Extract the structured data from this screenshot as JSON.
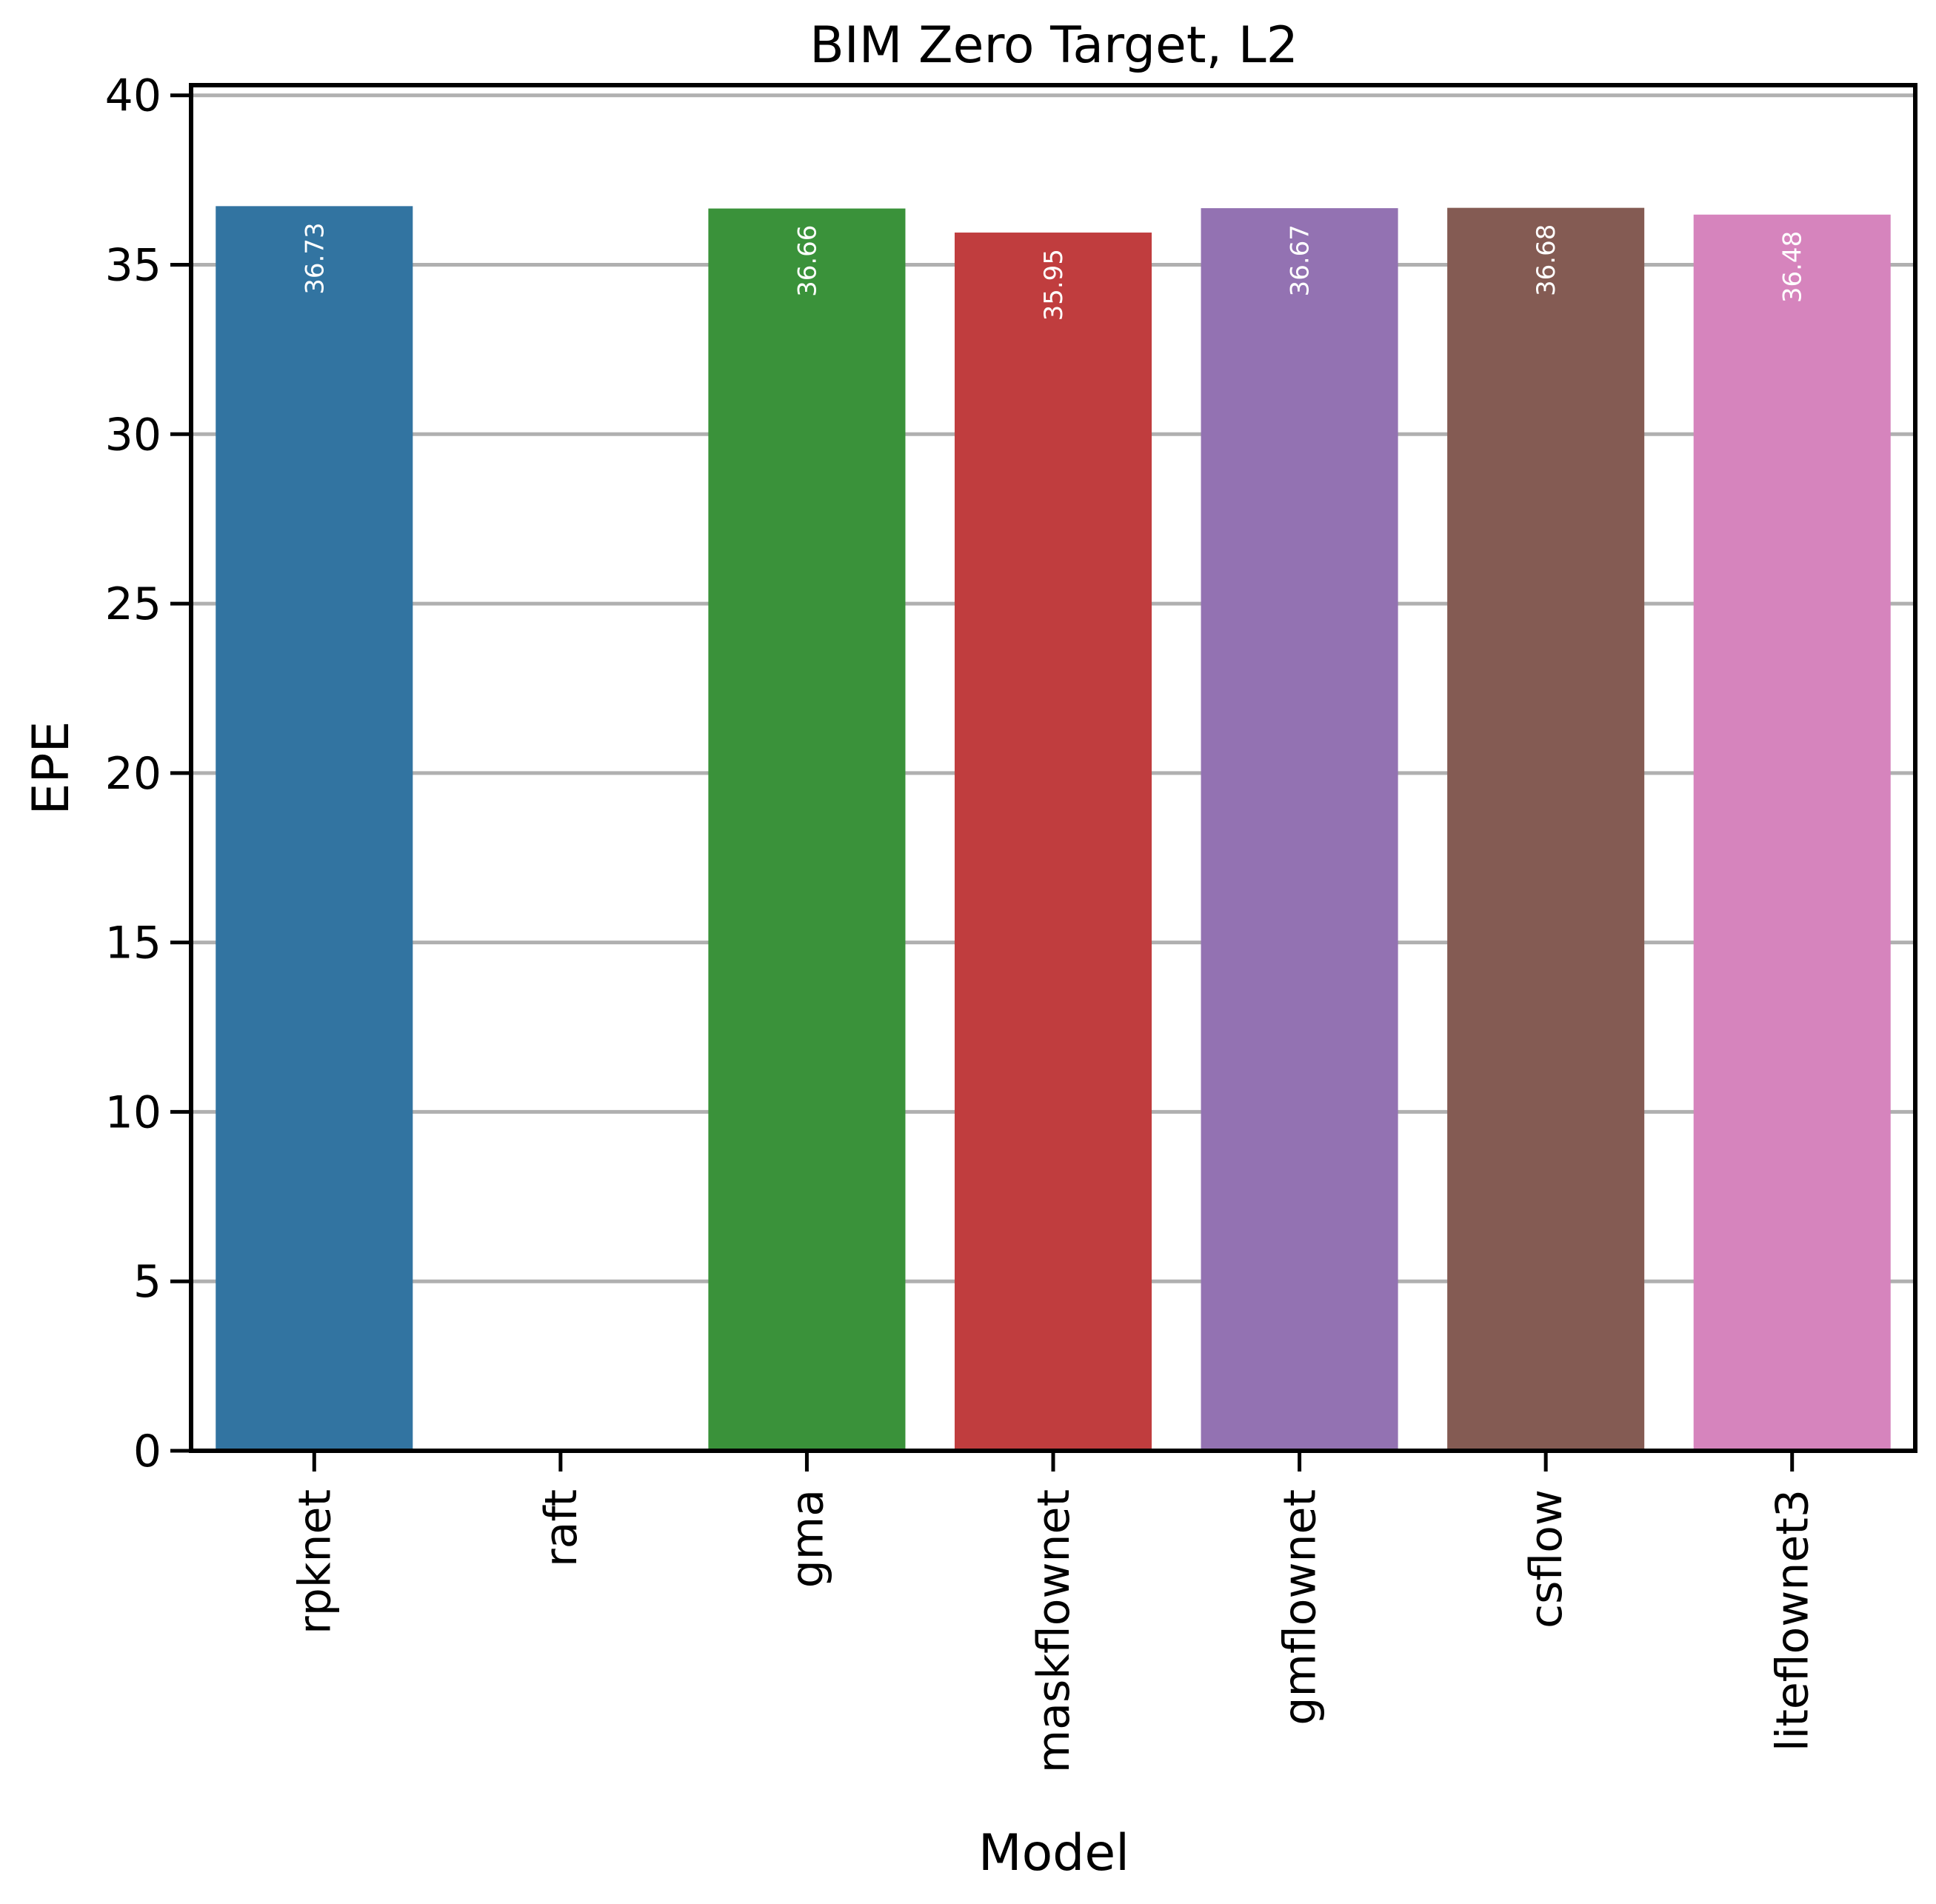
{
  "chart_data": {
    "type": "bar",
    "title": "BIM Zero Target, L2",
    "xlabel": "Model",
    "ylabel": "EPE",
    "categories": [
      "rpknet",
      "raft",
      "gma",
      "maskflownet",
      "gmflownet",
      "csflow",
      "liteflownet3"
    ],
    "values": [
      36.73,
      null,
      36.66,
      35.95,
      36.67,
      36.68,
      36.48
    ],
    "data_labels": [
      "36.73",
      "",
      "36.66",
      "35.95",
      "36.67",
      "36.68",
      "36.48"
    ],
    "colors": [
      "#3274a1",
      "#e1812c",
      "#3a923a",
      "#c03d3e",
      "#9372b2",
      "#845b53",
      "#d684bd"
    ],
    "ylim": [
      0,
      40.3
    ],
    "yticks": [
      0,
      5,
      10,
      15,
      20,
      25,
      30,
      35,
      40
    ],
    "grid": "horizontal"
  }
}
